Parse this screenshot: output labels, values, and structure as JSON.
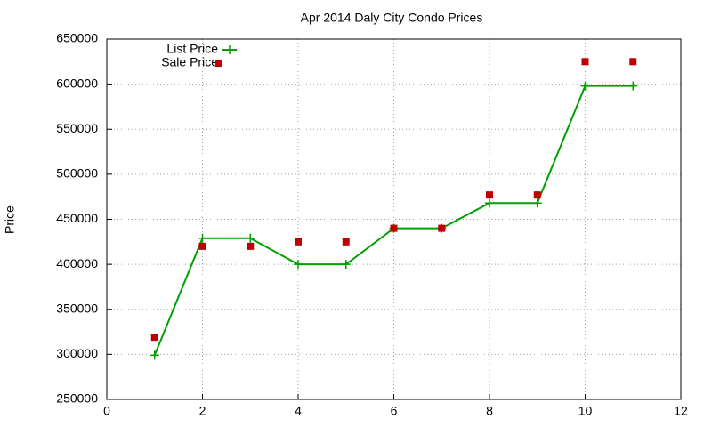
{
  "chart_data": {
    "type": "line",
    "title": "Apr 2014 Daly City Condo Prices",
    "ylabel": "Price",
    "x": [
      1,
      2,
      3,
      4,
      5,
      6,
      7,
      8,
      9,
      10,
      11
    ],
    "series": [
      {
        "name": "List Price",
        "color": "#00a000",
        "mode": "lines+markers",
        "values": [
          299000,
          429000,
          429000,
          400000,
          400000,
          440000,
          440000,
          468000,
          468000,
          598000,
          598000
        ]
      },
      {
        "name": "Sale Price",
        "color": "#c00000",
        "mode": "markers",
        "values": [
          319000,
          420000,
          420000,
          425000,
          425000,
          440000,
          440000,
          477000,
          477000,
          625000,
          625000
        ]
      }
    ],
    "xlim": [
      0,
      12
    ],
    "xticks": [
      0,
      2,
      4,
      6,
      8,
      10,
      12
    ],
    "ylim": [
      250000,
      650000
    ],
    "yticks": [
      250000,
      300000,
      350000,
      400000,
      450000,
      500000,
      550000,
      600000,
      650000
    ],
    "grid": true,
    "legend": "top-left"
  }
}
